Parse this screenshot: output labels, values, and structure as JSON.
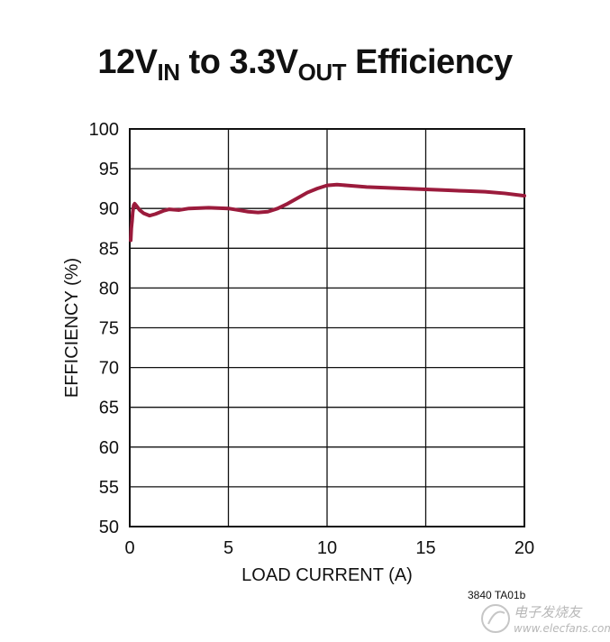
{
  "chart_data": {
    "type": "line",
    "title_main": "12V",
    "title_sub1": "IN",
    "title_mid": " to 3.3V",
    "title_sub2": "OUT",
    "title_end": " Efficiency",
    "xlabel": "LOAD CURRENT (A)",
    "ylabel": "EFFICIENCY (%)",
    "xlim": [
      0,
      20
    ],
    "ylim": [
      50,
      100
    ],
    "xticks": [
      0,
      5,
      10,
      15,
      20
    ],
    "yticks": [
      50,
      55,
      60,
      65,
      70,
      75,
      80,
      85,
      90,
      95,
      100
    ],
    "grid": true,
    "series": [
      {
        "color": "#9b1b3c",
        "x": [
          0.05,
          0.08,
          0.12,
          0.15,
          0.2,
          0.25,
          0.35,
          0.5,
          0.7,
          1.0,
          1.3,
          1.7,
          2.0,
          2.5,
          3.0,
          4.0,
          5.0,
          5.5,
          6.0,
          6.5,
          7.0,
          7.5,
          8.0,
          8.5,
          9.0,
          9.5,
          10.0,
          10.5,
          11.0,
          11.5,
          12.0,
          13.0,
          14.0,
          15.0,
          16.0,
          17.0,
          18.0,
          19.0,
          20.0
        ],
        "y": [
          86.0,
          87.5,
          88.5,
          89.5,
          90.4,
          90.6,
          90.3,
          89.8,
          89.4,
          89.1,
          89.3,
          89.7,
          89.9,
          89.8,
          90.0,
          90.1,
          90.0,
          89.8,
          89.6,
          89.5,
          89.6,
          90.0,
          90.6,
          91.3,
          92.0,
          92.5,
          92.9,
          93.0,
          92.9,
          92.8,
          92.7,
          92.6,
          92.5,
          92.4,
          92.3,
          92.2,
          92.1,
          91.9,
          91.6
        ]
      }
    ]
  },
  "footer": {
    "figure_id": "3840 TA01b",
    "watermark_cn": "电子发烧友",
    "watermark_url": "www.elecfans.com"
  }
}
